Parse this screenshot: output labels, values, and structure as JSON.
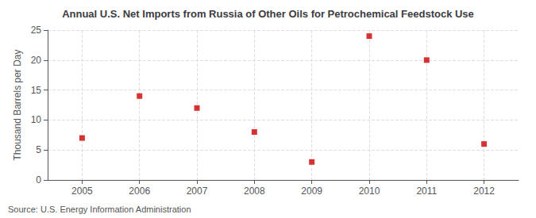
{
  "chart_data": {
    "type": "scatter",
    "title": "Annual U.S. Net Imports from Russia of Other Oils for Petrochemical Feedstock Use",
    "ylabel": "Thousand Barrels per Day",
    "annotations": [
      "Source: U.S. Energy Information Administration"
    ],
    "x": [
      2005,
      2006,
      2007,
      2008,
      2009,
      2010,
      2011,
      2012
    ],
    "values": [
      7,
      14,
      12,
      8,
      3,
      24,
      20,
      6
    ],
    "color": "#cc0000",
    "marker": "square",
    "xlim": [
      2004.4,
      2012.6
    ],
    "xticks": [
      2005,
      2006,
      2007,
      2008,
      2009,
      2010,
      2011,
      2012
    ],
    "ylim": [
      0,
      25
    ],
    "yticks": [
      0,
      5,
      10,
      15,
      20,
      25
    ],
    "grid": true
  }
}
